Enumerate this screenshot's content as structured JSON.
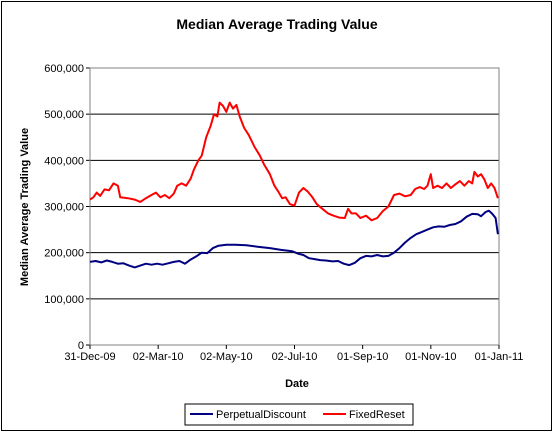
{
  "chart_data": {
    "type": "line",
    "title": "Median Average Trading Value",
    "xlabel": "Date",
    "ylabel": "Median Average Trading Value",
    "ylim": [
      0,
      600000
    ],
    "yticks": [
      "0",
      "100,000",
      "200,000",
      "300,000",
      "400,000",
      "500,000",
      "600,000"
    ],
    "xlim": [
      "2009-12-31",
      "2011-01-01"
    ],
    "xticks": [
      "31-Dec-09",
      "02-Mar-10",
      "02-May-10",
      "02-Jul-10",
      "01-Sep-10",
      "01-Nov-10",
      "01-Jan-11"
    ],
    "x_dates": [
      "2009-12-31",
      "2010-03-02",
      "2010-05-02",
      "2010-07-02",
      "2010-09-01",
      "2010-11-01",
      "2011-01-01"
    ],
    "grid": "horizontal",
    "legend_position": "bottom",
    "plot_background": "#ffffff",
    "series": [
      {
        "name": "PerpetualDiscount",
        "color": "#000080",
        "points": [
          [
            "2009-12-31",
            180000
          ],
          [
            "2010-01-05",
            182000
          ],
          [
            "2010-01-10",
            179000
          ],
          [
            "2010-01-15",
            183000
          ],
          [
            "2010-01-20",
            180000
          ],
          [
            "2010-01-25",
            176000
          ],
          [
            "2010-01-30",
            177000
          ],
          [
            "2010-02-04",
            172000
          ],
          [
            "2010-02-09",
            168000
          ],
          [
            "2010-02-14",
            172000
          ],
          [
            "2010-02-19",
            176000
          ],
          [
            "2010-02-24",
            174000
          ],
          [
            "2010-03-01",
            176000
          ],
          [
            "2010-03-06",
            174000
          ],
          [
            "2010-03-11",
            177000
          ],
          [
            "2010-03-16",
            180000
          ],
          [
            "2010-03-21",
            182000
          ],
          [
            "2010-03-26",
            176000
          ],
          [
            "2010-03-31",
            185000
          ],
          [
            "2010-04-05",
            192000
          ],
          [
            "2010-04-10",
            200000
          ],
          [
            "2010-04-15",
            199000
          ],
          [
            "2010-04-20",
            210000
          ],
          [
            "2010-04-25",
            215000
          ],
          [
            "2010-05-02",
            217000
          ],
          [
            "2010-05-10",
            217000
          ],
          [
            "2010-05-20",
            216000
          ],
          [
            "2010-05-30",
            213000
          ],
          [
            "2010-06-10",
            210000
          ],
          [
            "2010-06-20",
            206000
          ],
          [
            "2010-06-30",
            203000
          ],
          [
            "2010-07-05",
            198000
          ],
          [
            "2010-07-10",
            195000
          ],
          [
            "2010-07-15",
            188000
          ],
          [
            "2010-07-20",
            186000
          ],
          [
            "2010-07-25",
            184000
          ],
          [
            "2010-07-30",
            183000
          ],
          [
            "2010-08-05",
            181000
          ],
          [
            "2010-08-10",
            182000
          ],
          [
            "2010-08-15",
            176000
          ],
          [
            "2010-08-20",
            173000
          ],
          [
            "2010-08-25",
            178000
          ],
          [
            "2010-08-30",
            188000
          ],
          [
            "2010-09-04",
            193000
          ],
          [
            "2010-09-09",
            192000
          ],
          [
            "2010-09-14",
            195000
          ],
          [
            "2010-09-19",
            192000
          ],
          [
            "2010-09-24",
            193000
          ],
          [
            "2010-09-29",
            200000
          ],
          [
            "2010-10-04",
            210000
          ],
          [
            "2010-10-09",
            222000
          ],
          [
            "2010-10-14",
            232000
          ],
          [
            "2010-10-19",
            240000
          ],
          [
            "2010-10-24",
            245000
          ],
          [
            "2010-10-29",
            250000
          ],
          [
            "2010-11-03",
            255000
          ],
          [
            "2010-11-08",
            257000
          ],
          [
            "2010-11-13",
            256000
          ],
          [
            "2010-11-18",
            260000
          ],
          [
            "2010-11-23",
            262000
          ],
          [
            "2010-11-28",
            268000
          ],
          [
            "2010-12-03",
            278000
          ],
          [
            "2010-12-08",
            284000
          ],
          [
            "2010-12-13",
            283000
          ],
          [
            "2010-12-16",
            279000
          ],
          [
            "2010-12-20",
            288000
          ],
          [
            "2010-12-23",
            291000
          ],
          [
            "2010-12-26",
            284000
          ],
          [
            "2010-12-29",
            275000
          ],
          [
            "2010-12-31",
            240000
          ]
        ]
      },
      {
        "name": "FixedReset",
        "color": "#ff0000",
        "points": [
          [
            "2009-12-31",
            315000
          ],
          [
            "2010-01-03",
            320000
          ],
          [
            "2010-01-06",
            330000
          ],
          [
            "2010-01-09",
            323000
          ],
          [
            "2010-01-13",
            337000
          ],
          [
            "2010-01-17",
            335000
          ],
          [
            "2010-01-21",
            350000
          ],
          [
            "2010-01-25",
            345000
          ],
          [
            "2010-01-27",
            320000
          ],
          [
            "2010-02-03",
            318000
          ],
          [
            "2010-02-09",
            315000
          ],
          [
            "2010-02-14",
            310000
          ],
          [
            "2010-02-19",
            318000
          ],
          [
            "2010-02-24",
            325000
          ],
          [
            "2010-02-28",
            330000
          ],
          [
            "2010-03-04",
            320000
          ],
          [
            "2010-03-08",
            325000
          ],
          [
            "2010-03-12",
            318000
          ],
          [
            "2010-03-16",
            328000
          ],
          [
            "2010-03-19",
            345000
          ],
          [
            "2010-03-23",
            350000
          ],
          [
            "2010-03-27",
            345000
          ],
          [
            "2010-03-31",
            360000
          ],
          [
            "2010-04-03",
            380000
          ],
          [
            "2010-04-07",
            400000
          ],
          [
            "2010-04-10",
            410000
          ],
          [
            "2010-04-14",
            450000
          ],
          [
            "2010-04-18",
            475000
          ],
          [
            "2010-04-21",
            500000
          ],
          [
            "2010-04-24",
            495000
          ],
          [
            "2010-04-26",
            525000
          ],
          [
            "2010-04-29",
            518000
          ],
          [
            "2010-05-02",
            505000
          ],
          [
            "2010-05-05",
            525000
          ],
          [
            "2010-05-08",
            512000
          ],
          [
            "2010-05-11",
            520000
          ],
          [
            "2010-05-14",
            495000
          ],
          [
            "2010-05-18",
            470000
          ],
          [
            "2010-05-22",
            455000
          ],
          [
            "2010-05-27",
            430000
          ],
          [
            "2010-06-01",
            410000
          ],
          [
            "2010-06-05",
            390000
          ],
          [
            "2010-06-10",
            370000
          ],
          [
            "2010-06-14",
            345000
          ],
          [
            "2010-06-18",
            330000
          ],
          [
            "2010-06-21",
            318000
          ],
          [
            "2010-06-24",
            320000
          ],
          [
            "2010-06-28",
            305000
          ],
          [
            "2010-07-02",
            302000
          ],
          [
            "2010-07-06",
            330000
          ],
          [
            "2010-07-10",
            340000
          ],
          [
            "2010-07-14",
            332000
          ],
          [
            "2010-07-18",
            320000
          ],
          [
            "2010-07-22",
            305000
          ],
          [
            "2010-07-27",
            295000
          ],
          [
            "2010-08-01",
            285000
          ],
          [
            "2010-08-06",
            280000
          ],
          [
            "2010-08-11",
            276000
          ],
          [
            "2010-08-16",
            275000
          ],
          [
            "2010-08-19",
            295000
          ],
          [
            "2010-08-22",
            285000
          ],
          [
            "2010-08-26",
            285000
          ],
          [
            "2010-08-30",
            275000
          ],
          [
            "2010-09-04",
            280000
          ],
          [
            "2010-09-09",
            270000
          ],
          [
            "2010-09-14",
            275000
          ],
          [
            "2010-09-19",
            290000
          ],
          [
            "2010-09-24",
            300000
          ],
          [
            "2010-09-29",
            325000
          ],
          [
            "2010-10-04",
            328000
          ],
          [
            "2010-10-09",
            322000
          ],
          [
            "2010-10-14",
            325000
          ],
          [
            "2010-10-18",
            338000
          ],
          [
            "2010-10-22",
            342000
          ],
          [
            "2010-10-26",
            338000
          ],
          [
            "2010-10-29",
            345000
          ],
          [
            "2010-11-01",
            370000
          ],
          [
            "2010-11-03",
            340000
          ],
          [
            "2010-11-07",
            345000
          ],
          [
            "2010-11-11",
            340000
          ],
          [
            "2010-11-15",
            350000
          ],
          [
            "2010-11-19",
            340000
          ],
          [
            "2010-11-23",
            348000
          ],
          [
            "2010-11-27",
            355000
          ],
          [
            "2010-12-01",
            345000
          ],
          [
            "2010-12-05",
            355000
          ],
          [
            "2010-12-08",
            350000
          ],
          [
            "2010-12-10",
            375000
          ],
          [
            "2010-12-13",
            365000
          ],
          [
            "2010-12-16",
            370000
          ],
          [
            "2010-12-19",
            358000
          ],
          [
            "2010-12-22",
            340000
          ],
          [
            "2010-12-25",
            350000
          ],
          [
            "2010-12-28",
            340000
          ],
          [
            "2010-12-31",
            318000
          ]
        ]
      }
    ]
  }
}
